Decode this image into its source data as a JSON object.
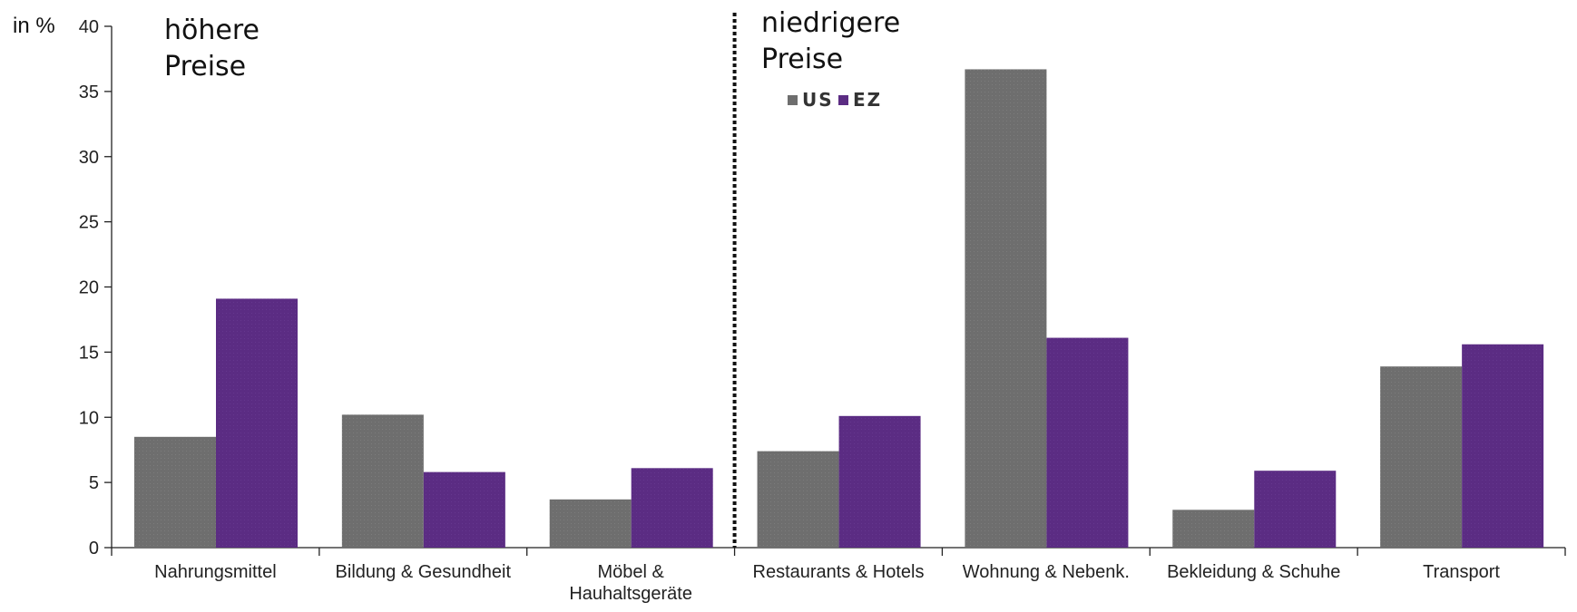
{
  "chart_data": {
    "type": "bar",
    "ylabel": "in %",
    "ylim": [
      0,
      40
    ],
    "yticks": [
      0,
      5,
      10,
      15,
      20,
      25,
      30,
      35,
      40
    ],
    "grid": false,
    "legend_position": "top-center",
    "categories": [
      [
        "Nahrungsmittel"
      ],
      [
        "Bildung & Gesundheit"
      ],
      [
        "Möbel &",
        "Hauhaltsgeräte"
      ],
      [
        "Restaurants & Hotels"
      ],
      [
        "Wohnung & Nebenk."
      ],
      [
        "Bekleidung & Schuhe"
      ],
      [
        "Transport"
      ]
    ],
    "series": [
      {
        "name": "US",
        "color": "#6e6e6e",
        "values": [
          8.5,
          10.2,
          3.7,
          7.4,
          36.7,
          2.9,
          13.9
        ]
      },
      {
        "name": "EZ",
        "color": "#5b2c83",
        "values": [
          19.1,
          5.8,
          6.1,
          10.1,
          16.1,
          5.9,
          15.6
        ]
      }
    ],
    "annotations": [
      {
        "lines": [
          "höhere",
          "Preise"
        ]
      },
      {
        "lines": [
          "niedrigere",
          "Preise"
        ]
      }
    ],
    "divider": {
      "style": "dotted",
      "between_categories": [
        2,
        3
      ]
    }
  }
}
